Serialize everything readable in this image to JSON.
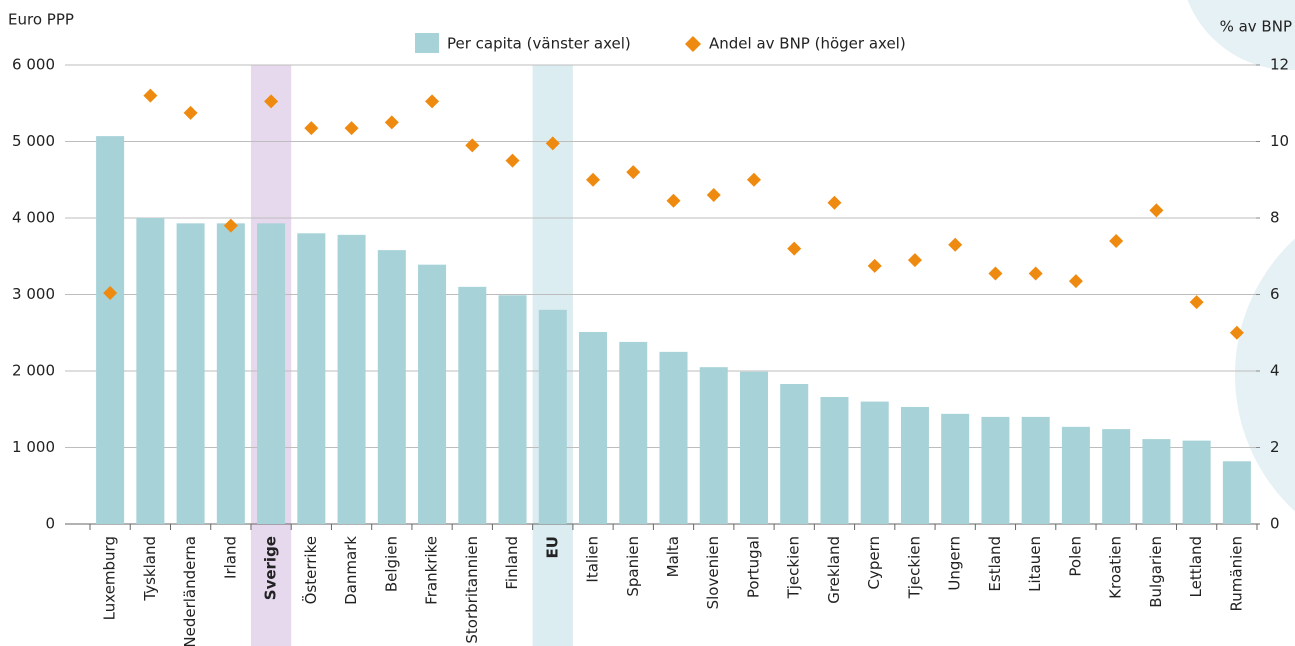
{
  "chart_data": {
    "type": "bar",
    "y_label": "Euro PPP",
    "y2_label": "% av BNP",
    "categories": [
      "Luxemburg",
      "Tyskland",
      "Nederländerna",
      "Irland",
      "Sverige",
      "Österrike",
      "Danmark",
      "Belgien",
      "Frankrike",
      "Storbritannien",
      "Finland",
      "EU",
      "Italien",
      "Spanien",
      "Malta",
      "Slovenien",
      "Portugal",
      "Tjeckien",
      "Grekland",
      "Cypern",
      "Tjeckien",
      "Ungern",
      "Estland",
      "Litauen",
      "Polen",
      "Kroatien",
      "Bulgarien",
      "Lettland",
      "Rumänien"
    ],
    "highlight_colors": [
      null,
      null,
      null,
      null,
      "#e6d9ee",
      null,
      null,
      null,
      null,
      null,
      null,
      "#dcedf1",
      null,
      null,
      null,
      null,
      null,
      null,
      null,
      null,
      null,
      null,
      null,
      null,
      null,
      null,
      null,
      null,
      null
    ],
    "series": [
      {
        "name": "Per capita (vänster axel)",
        "type": "bar",
        "color": "#a6d2d8",
        "values": [
          5070,
          4000,
          3930,
          3930,
          3930,
          3800,
          3780,
          3580,
          3390,
          3100,
          2990,
          2800,
          2510,
          2380,
          2250,
          2050,
          1990,
          1830,
          1660,
          1600,
          1530,
          1440,
          1400,
          1400,
          1270,
          1240,
          1110,
          1090,
          820
        ]
      },
      {
        "name": "Andel av BNP (höger axel)",
        "type": "scatter",
        "axis": "y2",
        "color": "#ef8a10",
        "values": [
          6.04,
          11.2,
          10.75,
          7.8,
          11.05,
          10.35,
          10.35,
          10.5,
          11.05,
          9.9,
          9.5,
          9.95,
          9.0,
          9.2,
          8.45,
          8.6,
          9.0,
          7.2,
          8.4,
          6.75,
          6.9,
          7.3,
          6.55,
          6.55,
          6.35,
          7.4,
          8.2,
          5.8,
          5.0
        ]
      }
    ],
    "ylim": [
      0,
      6000
    ],
    "yticks": [
      0,
      {
        "value": 1000,
        "label": "1 000"
      },
      {
        "value": 2000,
        "label": "2 000"
      },
      {
        "value": 3000,
        "label": "3 000"
      },
      {
        "value": 4000,
        "label": "4 000"
      },
      {
        "value": 5000,
        "label": "5 000"
      },
      {
        "value": 6000,
        "label": "6 000"
      }
    ],
    "y2lim": [
      0,
      12
    ],
    "y2ticks": [
      0,
      2,
      4,
      6,
      8,
      10,
      12
    ],
    "grid": true
  }
}
